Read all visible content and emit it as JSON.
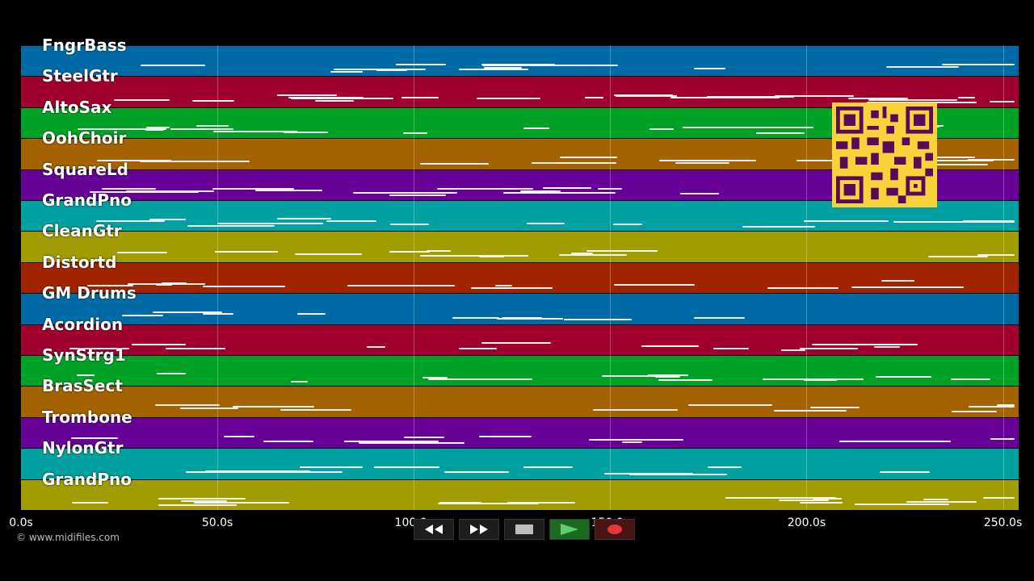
{
  "tracks": [
    {
      "name": "FngrBass",
      "color": "#006aa6"
    },
    {
      "name": "SteelGtr",
      "color": "#a0002d"
    },
    {
      "name": "AltoSax",
      "color": "#00a226"
    },
    {
      "name": "OohChoir",
      "color": "#a46200"
    },
    {
      "name": "SquareLd",
      "color": "#660096"
    },
    {
      "name": "GrandPno",
      "color": "#00a1a0"
    },
    {
      "name": "CleanGtr",
      "color": "#a19d00"
    },
    {
      "name": "Distortd",
      "color": "#a12400"
    },
    {
      "name": "GM Drums",
      "color": "#006aa6"
    },
    {
      "name": "Acordion",
      "color": "#a0002d"
    },
    {
      "name": "SynStrg1",
      "color": "#00a226"
    },
    {
      "name": "BrasSect",
      "color": "#a46200"
    },
    {
      "name": "Trombone",
      "color": "#660096"
    },
    {
      "name": "NylonGtr",
      "color": "#00a1a0"
    },
    {
      "name": "GrandPno",
      "color": "#a19d00"
    }
  ],
  "timeline": {
    "ticks": [
      "0.0s",
      "50.0s",
      "100.0s",
      "150.0s",
      "200.0s",
      "250.0s"
    ],
    "tick_values": [
      0,
      50,
      100,
      150,
      200,
      250
    ],
    "range": [
      0,
      254
    ]
  },
  "credit": "© www.midifiles.com",
  "transport": {
    "rewind_icon": "rewind-icon",
    "forward_icon": "fast-forward-icon",
    "stop_icon": "stop-icon",
    "play_icon": "play-icon",
    "record_icon": "record-icon"
  }
}
